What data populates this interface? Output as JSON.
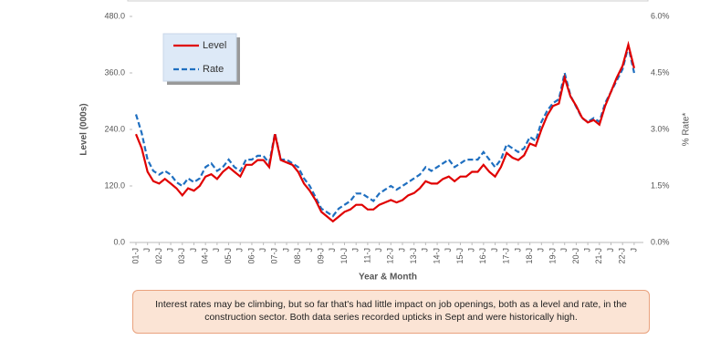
{
  "chart_data": {
    "type": "line",
    "xlabel": "Year & Month",
    "ylabel": "Level (000s)",
    "y2label": "% Rate*",
    "annotation": "Interest rates may be climbing, but so far that's had little impact on job openings, both as a level and rate, in the construction sector. Both data series recorded upticks in Sept and were historically high.",
    "categories": [
      "01-J",
      null,
      "J",
      null,
      "02-J",
      null,
      "J",
      null,
      "03-J",
      null,
      "J",
      null,
      "04-J",
      null,
      "J",
      null,
      "05-J",
      null,
      "J",
      null,
      "06-J",
      null,
      "J",
      null,
      "07-J",
      null,
      "J",
      null,
      "08-J",
      null,
      "J",
      null,
      "09-J",
      null,
      "J",
      null,
      "10-J",
      null,
      "J",
      null,
      "11-J",
      null,
      "J",
      null,
      "12-J",
      null,
      "J",
      null,
      "13-J",
      null,
      "J",
      null,
      "14-J",
      null,
      "J",
      null,
      "15-J",
      null,
      "J",
      null,
      "16-J",
      null,
      "J",
      null,
      "17-J",
      null,
      "J",
      null,
      "18-J",
      null,
      "J",
      null,
      "19-J",
      null,
      "J",
      null,
      "20-J",
      null,
      "J",
      null,
      "21-J",
      null,
      "J",
      null,
      "22-J",
      null,
      "J"
    ],
    "series": [
      {
        "name": "Level",
        "color": "#e00000",
        "dash": false,
        "values": [
          230,
          200,
          150,
          130,
          125,
          135,
          125,
          115,
          100,
          115,
          110,
          120,
          140,
          145,
          135,
          150,
          160,
          150,
          140,
          165,
          165,
          175,
          175,
          160,
          230,
          175,
          170,
          165,
          150,
          125,
          110,
          90,
          65,
          55,
          45,
          55,
          65,
          70,
          80,
          80,
          70,
          70,
          80,
          85,
          90,
          85,
          90,
          100,
          105,
          115,
          130,
          125,
          125,
          135,
          140,
          130,
          140,
          140,
          150,
          150,
          165,
          150,
          140,
          160,
          190,
          180,
          175,
          185,
          210,
          205,
          240,
          270,
          290,
          295,
          350,
          310,
          290,
          265,
          255,
          260,
          250,
          290,
          320,
          350,
          375,
          420,
          370
        ]
      },
      {
        "name": "Rate",
        "color": "#1f6fc0",
        "dash": true,
        "axis": "y2",
        "values": [
          3.4,
          2.9,
          2.2,
          1.9,
          1.8,
          1.9,
          1.8,
          1.6,
          1.5,
          1.7,
          1.6,
          1.7,
          2.0,
          2.1,
          1.9,
          2.0,
          2.2,
          2.0,
          1.9,
          2.2,
          2.2,
          2.3,
          2.3,
          2.1,
          2.9,
          2.2,
          2.2,
          2.1,
          2.0,
          1.7,
          1.5,
          1.2,
          0.9,
          0.8,
          0.7,
          0.9,
          1.0,
          1.1,
          1.3,
          1.3,
          1.2,
          1.1,
          1.3,
          1.4,
          1.5,
          1.4,
          1.5,
          1.6,
          1.7,
          1.8,
          2.0,
          1.9,
          2.0,
          2.1,
          2.2,
          2.0,
          2.1,
          2.2,
          2.2,
          2.2,
          2.4,
          2.2,
          2.0,
          2.2,
          2.6,
          2.5,
          2.4,
          2.5,
          2.8,
          2.7,
          3.2,
          3.5,
          3.7,
          3.8,
          4.5,
          3.9,
          3.6,
          3.3,
          3.2,
          3.3,
          3.2,
          3.7,
          4.0,
          4.3,
          4.6,
          5.2,
          4.5
        ]
      }
    ],
    "ylim": [
      0,
      480
    ],
    "yticks": [
      {
        "value": 0,
        "label": "0.0"
      },
      {
        "value": 120,
        "label": "120.0"
      },
      {
        "value": 240,
        "label": "240.0"
      },
      {
        "value": 360,
        "label": "360.0"
      },
      {
        "value": 480,
        "label": "480.0"
      }
    ],
    "y2lim": [
      0,
      6
    ],
    "y2ticks": [
      {
        "value": 0,
        "label": "0.0%"
      },
      {
        "value": 1.5,
        "label": "1.5%"
      },
      {
        "value": 3,
        "label": "3.0%"
      },
      {
        "value": 4.5,
        "label": "4.5%"
      },
      {
        "value": 6,
        "label": "6.0%"
      }
    ],
    "legend": "upper left"
  }
}
